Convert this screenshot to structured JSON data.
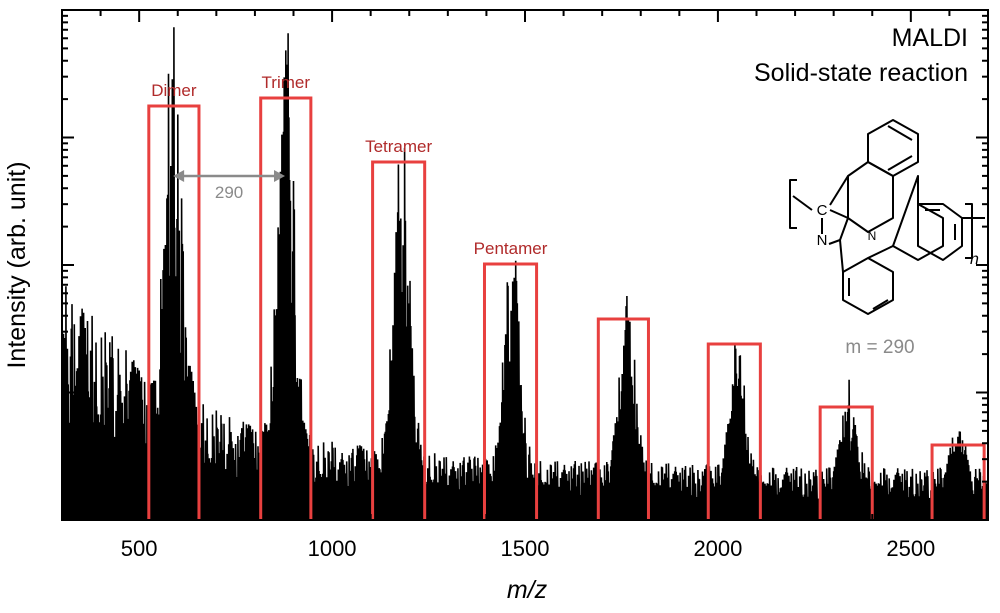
{
  "chart_data": {
    "type": "line",
    "xlabel": "m/z",
    "ylabel": "Intensity (arb. unit)",
    "xlim": [
      300,
      2700
    ],
    "x_ticks": [
      500,
      1000,
      1500,
      2000,
      2500
    ],
    "y_scale": "log",
    "y_ticklabels": "none",
    "annotations": {
      "method": "MALDI",
      "condition": "Solid-state reaction",
      "repeat_spacing_label": "290",
      "repeat_spacing_range": [
        588,
        878
      ],
      "monomer_mass_label": "m = 290",
      "end_subscript": "n",
      "structure_atoms": [
        "C",
        "N",
        "N"
      ]
    },
    "oligomer_windows": [
      {
        "label": "Dimer",
        "x_start": 525,
        "x_end": 655,
        "color": "#e8403f",
        "label_color": "#b02a2a"
      },
      {
        "label": "Trimer",
        "x_start": 815,
        "x_end": 945,
        "color": "#e8403f",
        "label_color": "#b02a2a"
      },
      {
        "label": "Tetramer",
        "x_start": 1105,
        "x_end": 1240,
        "color": "#e8403f",
        "label_color": "#b02a2a"
      },
      {
        "label": "Pentamer",
        "x_start": 1395,
        "x_end": 1530,
        "color": "#e8403f",
        "label_color": "#b02a2a"
      },
      {
        "label": "",
        "x_start": 1690,
        "x_end": 1820,
        "color": "#e8403f",
        "label_color": "#b02a2a"
      },
      {
        "label": "",
        "x_start": 1975,
        "x_end": 2110,
        "color": "#e8403f",
        "label_color": "#b02a2a"
      },
      {
        "label": "",
        "x_start": 2265,
        "x_end": 2400,
        "color": "#e8403f",
        "label_color": "#b02a2a"
      },
      {
        "label": "",
        "x_start": 2555,
        "x_end": 2690,
        "color": "#e8403f",
        "label_color": "#b02a2a"
      }
    ],
    "spectrum_peaks": [
      {
        "center": 590,
        "height": 0.8,
        "width": 30
      },
      {
        "center": 880,
        "height": 0.83,
        "width": 30
      },
      {
        "center": 1180,
        "height": 0.68,
        "width": 30
      },
      {
        "center": 1465,
        "height": 0.47,
        "width": 28
      },
      {
        "center": 1765,
        "height": 0.36,
        "width": 28
      },
      {
        "center": 2050,
        "height": 0.29,
        "width": 26
      },
      {
        "center": 2340,
        "height": 0.18,
        "width": 26
      },
      {
        "center": 2625,
        "height": 0.11,
        "width": 26
      }
    ],
    "colors": {
      "spectrum": "#000000",
      "window": "#e8403f",
      "window_label": "#b02a2a",
      "arrow": "#8a8a8a",
      "axis": "#000000"
    }
  }
}
